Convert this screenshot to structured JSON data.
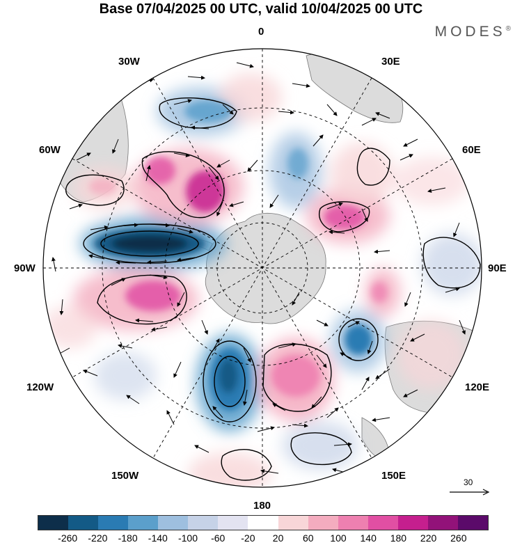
{
  "title": "Base 07/04/2025 00 UTC, valid 10/04/2025 00 UTC",
  "brand": "MODES",
  "brand_mark": "®",
  "longitude_labels": {
    "top": "0",
    "top_left": "30W",
    "top_right": "30E",
    "upper_left": "60W",
    "upper_right": "60E",
    "left": "90W",
    "right": "90E",
    "lower_left": "120W",
    "lower_right": "120E",
    "bottom_left": "150W",
    "bottom_right": "150E",
    "bottom": "180"
  },
  "reference_vector": "30",
  "colorbar": {
    "colors": [
      "#0d2e4a",
      "#135a86",
      "#2a7bb3",
      "#5b9fcb",
      "#9ebfdf",
      "#c6d2e7",
      "#e3e3f1",
      "#ffffff",
      "#f8d6d8",
      "#f4acbf",
      "#ee80b0",
      "#e14fa3",
      "#c51f8e",
      "#921279",
      "#5b0a6a"
    ],
    "ticks": [
      "-260",
      "-220",
      "-180",
      "-140",
      "-100",
      "-60",
      "-20",
      "20",
      "60",
      "100",
      "140",
      "180",
      "220",
      "260"
    ]
  }
}
